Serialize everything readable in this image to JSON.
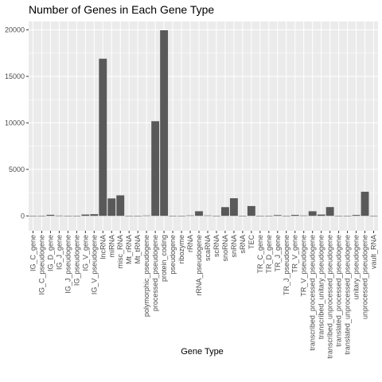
{
  "chart_data": {
    "type": "bar",
    "title": "Number of Genes in Each Gene Type",
    "xlabel": "Gene Type",
    "ylabel": "",
    "ylim": [
      -1600,
      20900
    ],
    "yticks": [
      0,
      5000,
      10000,
      15000,
      20000
    ],
    "ytick_labels": [
      "0",
      "5000",
      "10000",
      "15000",
      "20000"
    ],
    "grid": true,
    "bar_color": "#595959",
    "panel_color": "#ebebeb",
    "grid_color": "#ffffff",
    "categories": [
      "IG_C_gene",
      "IG_C_pseudogene",
      "IG_D_gene",
      "IG_J_gene",
      "IG_J_pseudogene",
      "IG_pseudogene",
      "IG_V_gene",
      "IG_V_pseudogene",
      "lncRNA",
      "miRNA",
      "misc_RNA",
      "Mt_rRNA",
      "Mt_tRNA",
      "polymorphic_pseudogene",
      "processed_pseudogene",
      "protein_coding",
      "pseudogene",
      "ribozyme",
      "rRNA",
      "rRNA_pseudogene",
      "scaRNA",
      "scRNA",
      "snoRNA",
      "snRNA",
      "sRNA",
      "TEC",
      "TR_C_gene",
      "TR_D_gene",
      "TR_J_gene",
      "TR_J_pseudogene",
      "TR_V_gene",
      "TR_V_pseudogene",
      "transcribed_processed_pseudogene",
      "transcribed_unitary_pseudogene",
      "transcribed_unprocessed_pseudogene",
      "translated_processed_pseudogene",
      "translated_unprocessed_pseudogene",
      "unitary_pseudogene",
      "unprocessed_pseudogene",
      "vault_RNA"
    ],
    "values": [
      14,
      9,
      120,
      37,
      4,
      5,
      150,
      187,
      16900,
      1880,
      2210,
      2,
      22,
      45,
      10180,
      19960,
      18,
      8,
      53,
      500,
      49,
      1,
      943,
      1900,
      5,
      1060,
      6,
      5,
      88,
      4,
      106,
      45,
      500,
      146,
      950,
      1,
      1,
      99,
      2600,
      1
    ]
  }
}
